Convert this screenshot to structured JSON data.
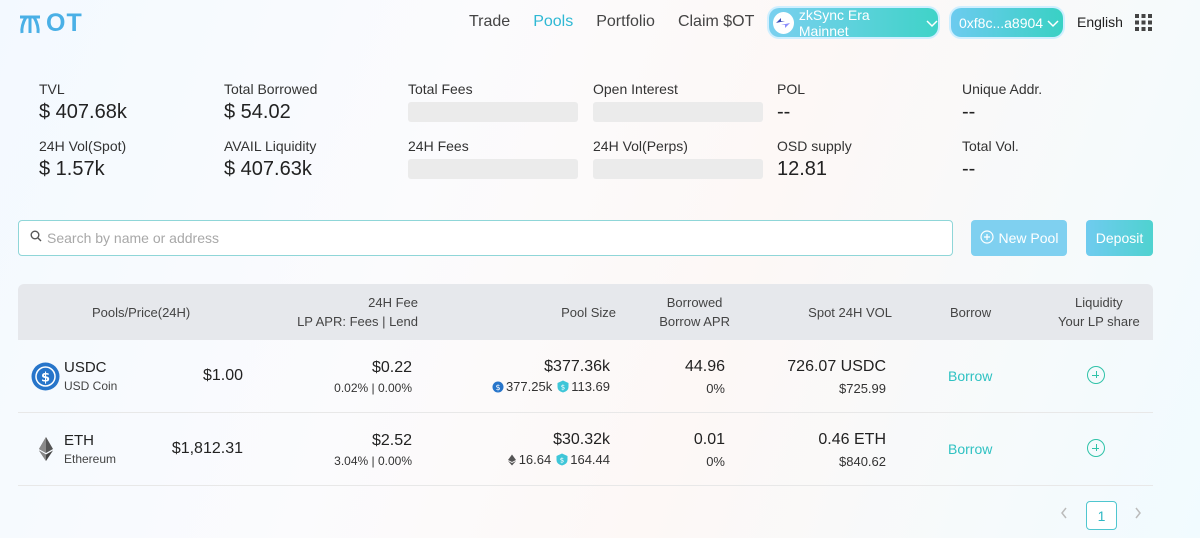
{
  "header": {
    "logo_text": "OT",
    "nav": [
      "Trade",
      "Pools",
      "Portfolio",
      "Claim $OT"
    ],
    "active_nav": "Pools",
    "network": "zkSync Era Mainnet",
    "wallet": "0xf8c...a8904",
    "language": "English"
  },
  "stats": {
    "tvl": {
      "label": "TVL",
      "value": "$ 407.68k"
    },
    "total_borrowed": {
      "label": "Total Borrowed",
      "value": "$ 54.02"
    },
    "total_fees": {
      "label": "Total Fees",
      "value": ""
    },
    "open_interest": {
      "label": "Open Interest",
      "value": ""
    },
    "pol": {
      "label": "POL",
      "value": "--"
    },
    "unique_addr": {
      "label": "Unique Addr.",
      "value": "--"
    },
    "vol_spot": {
      "label": "24H Vol(Spot)",
      "value": "$ 1.57k"
    },
    "avail_liquidity": {
      "label": "AVAIL Liquidity",
      "value": "$ 407.63k"
    },
    "fees_24h": {
      "label": "24H Fees",
      "value": ""
    },
    "vol_perps": {
      "label": "24H Vol(Perps)",
      "value": ""
    },
    "osd_supply": {
      "label": "OSD supply",
      "value": "12.81"
    },
    "total_vol": {
      "label": "Total Vol.",
      "value": "--"
    }
  },
  "search": {
    "placeholder": "Search by name or address",
    "value": ""
  },
  "actions": {
    "new_pool": "New Pool",
    "deposit": "Deposit"
  },
  "table": {
    "headers": {
      "pools": "Pools/Price(24H)",
      "fee_line1": "24H Fee",
      "fee_line2": "LP APR: Fees | Lend",
      "pool_size": "Pool Size",
      "borrowed_line1": "Borrowed",
      "borrowed_line2": "Borrow APR",
      "spot_vol": "Spot 24H VOL",
      "borrow": "Borrow",
      "liq_line1": "Liquidity",
      "liq_line2": "Your LP share"
    },
    "rows": [
      {
        "symbol": "USDC",
        "name": "USD Coin",
        "price": "$1.00",
        "fee": "$0.22",
        "apr": "0.02% | 0.00%",
        "pool_size": "$377.36k",
        "pool_token": "377.25k",
        "pool_osd": "113.69",
        "borrowed": "44.96",
        "borrow_apr": "0%",
        "spot_vol": "726.07 USDC",
        "spot_vol_usd": "$725.99",
        "borrow_label": "Borrow",
        "icon": "usdc-icon"
      },
      {
        "symbol": "ETH",
        "name": "Ethereum",
        "price": "$1,812.31",
        "fee": "$2.52",
        "apr": "3.04% | 0.00%",
        "pool_size": "$30.32k",
        "pool_token": "16.64",
        "pool_osd": "164.44",
        "borrowed": "0.01",
        "borrow_apr": "0%",
        "spot_vol": "0.46 ETH",
        "spot_vol_usd": "$840.62",
        "borrow_label": "Borrow",
        "icon": "eth-icon"
      }
    ]
  },
  "pagination": {
    "current": "1"
  },
  "colors": {
    "accent": "#2fb8d4",
    "brand": "#4ab0e6",
    "teal": "#2fc2c2"
  }
}
